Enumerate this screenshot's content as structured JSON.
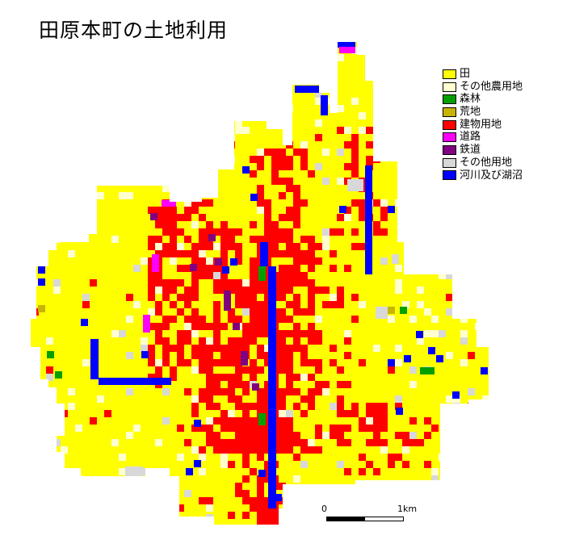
{
  "title": "田原本町の土地利用",
  "legend": [
    {
      "label": "田",
      "color": "#ffff00"
    },
    {
      "label": "その他農用地",
      "color": "#ffffd0"
    },
    {
      "label": "森林",
      "color": "#00a000"
    },
    {
      "label": "荒地",
      "color": "#c8b400"
    },
    {
      "label": "建物用地",
      "color": "#ff0000"
    },
    {
      "label": "道路",
      "color": "#ff00ff"
    },
    {
      "label": "鉄道",
      "color": "#800080"
    },
    {
      "label": "その他用地",
      "color": "#d8d8d8"
    },
    {
      "label": "河川及び湖沼",
      "color": "#0000ff"
    }
  ],
  "scale": {
    "start": "0",
    "end": "1km"
  }
}
